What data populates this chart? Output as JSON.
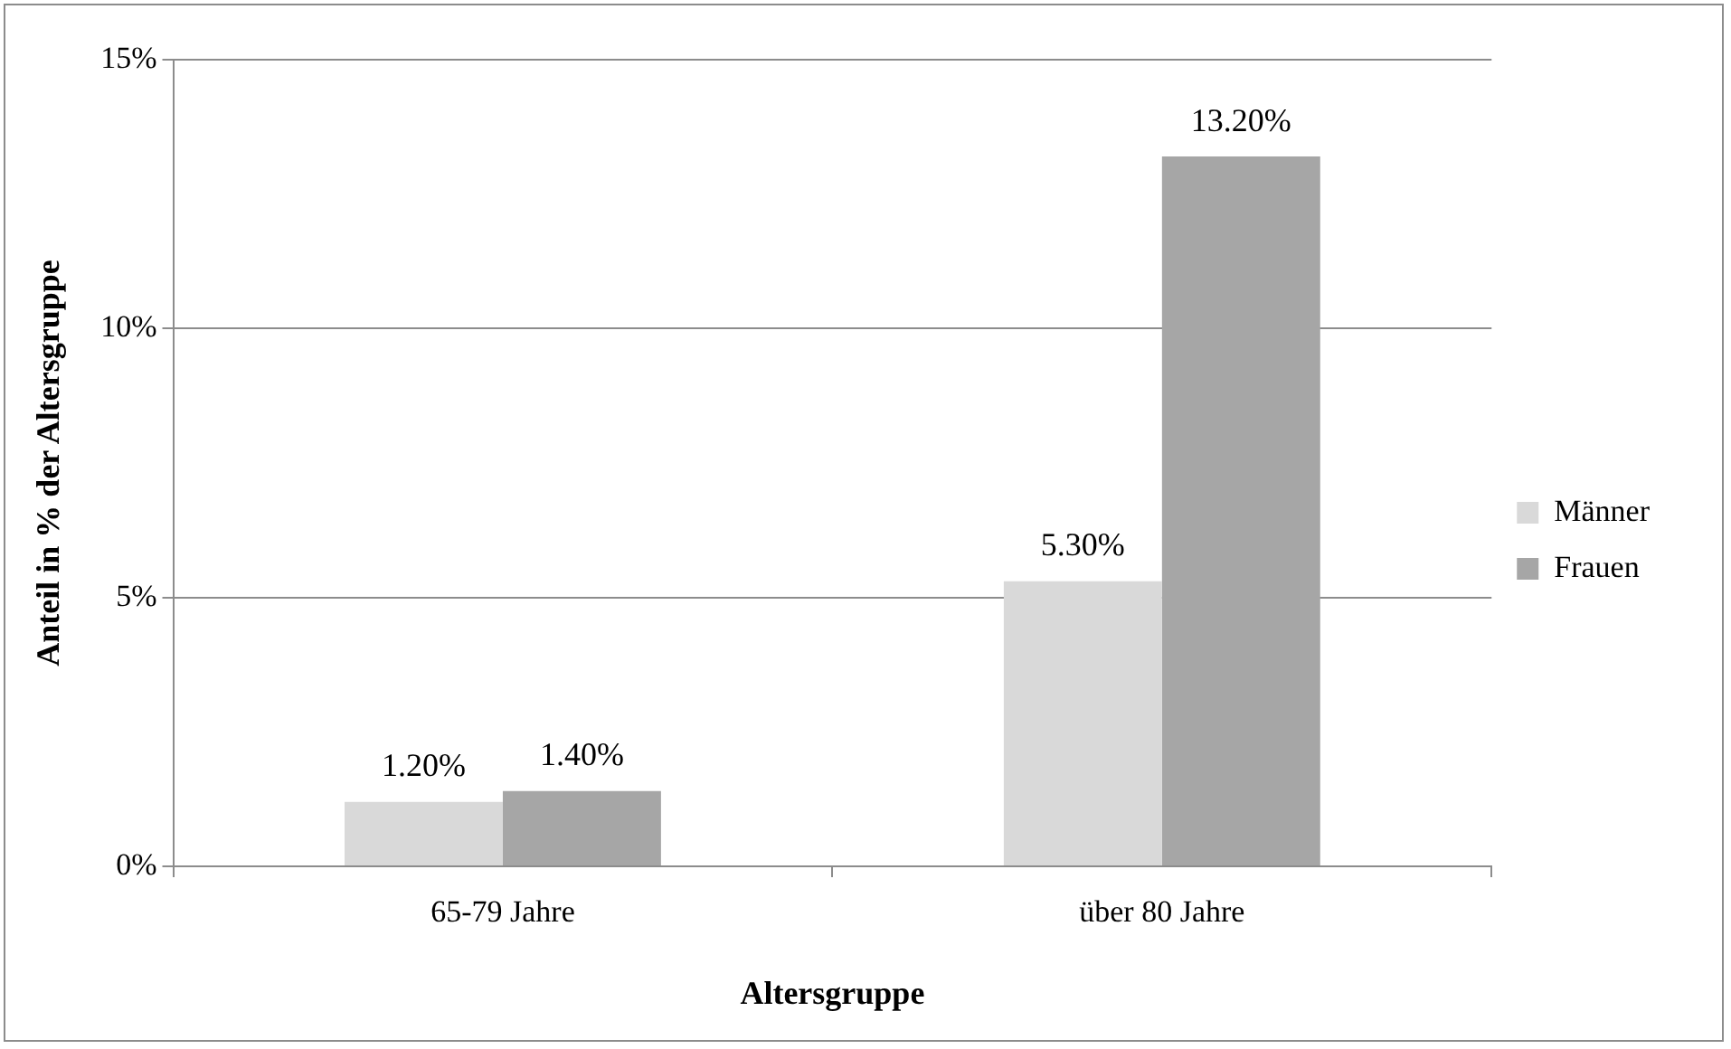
{
  "chart_data": {
    "type": "bar",
    "xlabel": "Altersgruppe",
    "ylabel": "Anteil in % der Altersgruppe",
    "categories": [
      "65-79 Jahre",
      "über 80 Jahre"
    ],
    "series": [
      {
        "name": "Männer",
        "color": "#d9d9d9",
        "values": [
          1.2,
          5.3
        ],
        "value_labels": [
          "1.20%",
          "5.30%"
        ]
      },
      {
        "name": "Frauen",
        "color": "#a6a6a6",
        "values": [
          1.4,
          13.2
        ],
        "value_labels": [
          "1.40%",
          "13.20%"
        ]
      }
    ],
    "ylim": [
      0,
      15
    ],
    "yticks": [
      {
        "value": 0,
        "label": "0%"
      },
      {
        "value": 5,
        "label": "5%"
      },
      {
        "value": 10,
        "label": "10%"
      },
      {
        "value": 15,
        "label": "15%"
      }
    ],
    "grid": "y",
    "legend": "right"
  }
}
